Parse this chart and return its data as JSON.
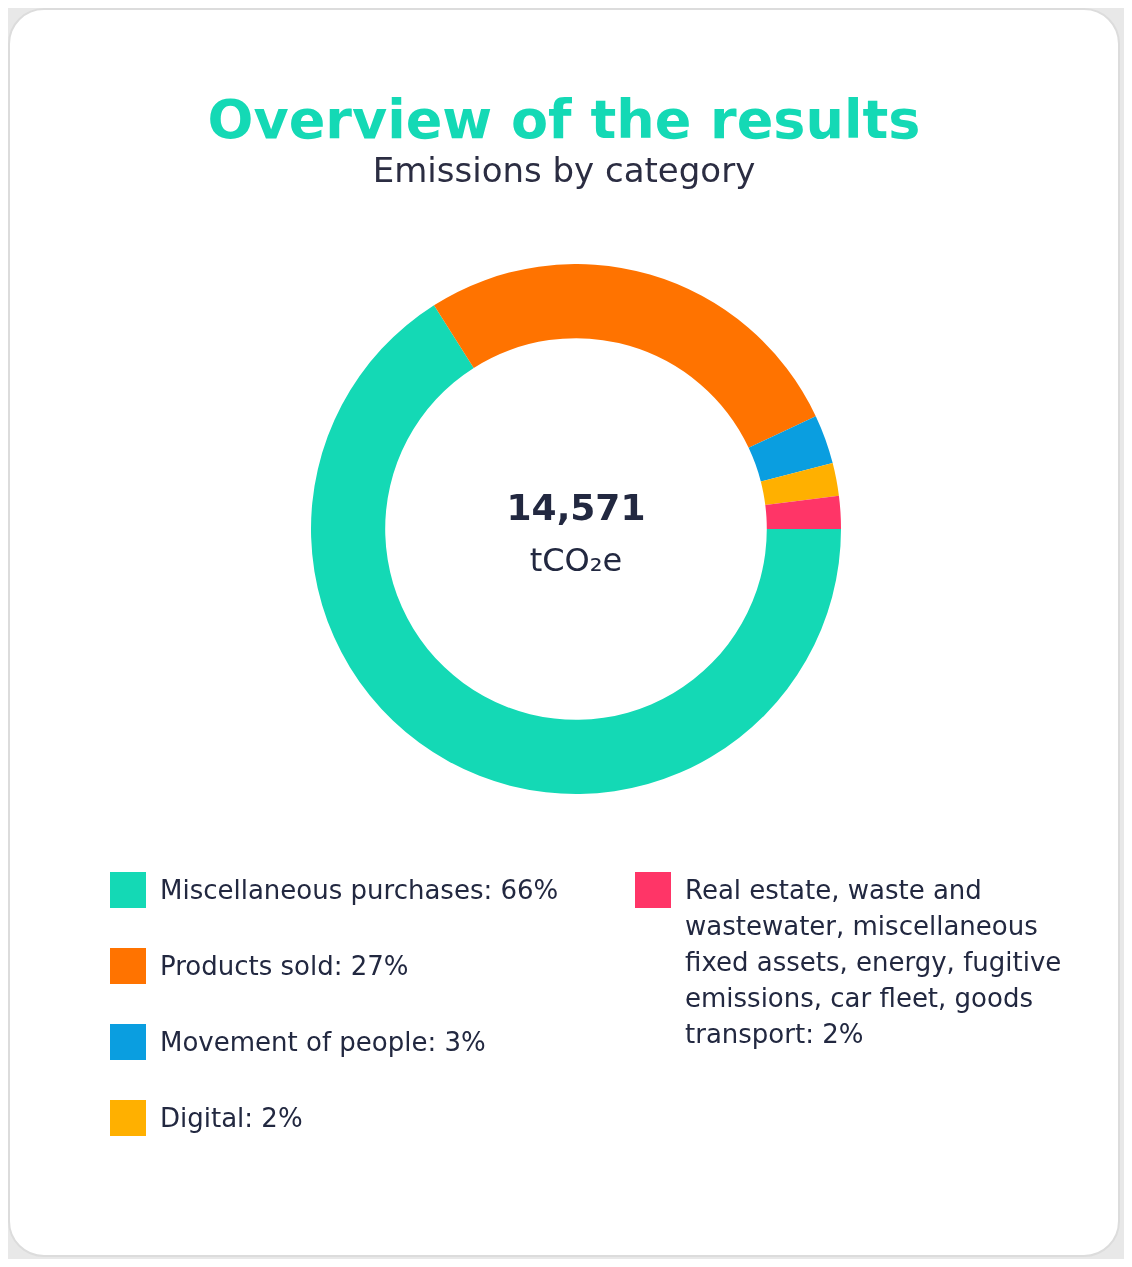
{
  "chart_data": {
    "type": "donut",
    "title": "Overview of the results",
    "subtitle": "Emissions by category",
    "categories": [
      "Miscellaneous purchases",
      "Products sold",
      "Movement of people",
      "Digital",
      "Real estate, waste and wastewater, miscellaneous fixed assets, energy, fugitive emissions, car fleet, goods transport"
    ],
    "values": [
      66,
      27,
      3,
      2,
      2
    ],
    "value_labels": [
      "66%",
      "27%",
      "3%",
      "2%",
      "2%"
    ],
    "colors": [
      "#14d9b5",
      "#ff7300",
      "#0a9ee0",
      "#ffb000",
      "#ff3567"
    ],
    "annotations": [
      "14,571",
      "tCO₂e"
    ],
    "legend": "bottom"
  }
}
